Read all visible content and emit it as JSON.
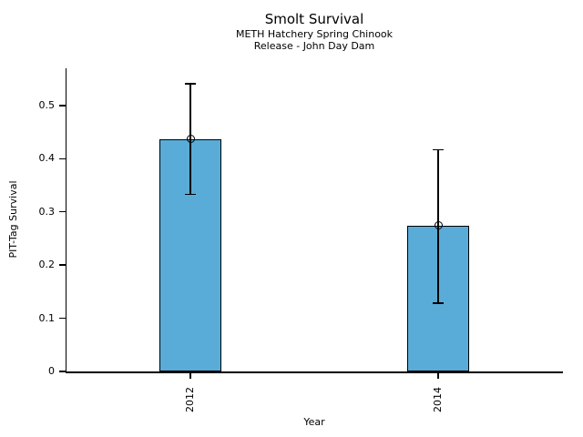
{
  "chart_data": {
    "type": "bar",
    "title": "Smolt Survival",
    "subtitle_lines": [
      "METH Hatchery Spring Chinook",
      "Release - John Day Dam"
    ],
    "xlabel": "Year",
    "ylabel": "PIT-Tag Survival",
    "categories": [
      "2012",
      "2014"
    ],
    "values": [
      0.437,
      0.274
    ],
    "error_low": [
      0.333,
      0.128
    ],
    "error_high": [
      0.541,
      0.417
    ],
    "yticks": [
      0,
      0.1,
      0.2,
      0.3,
      0.4,
      0.5
    ],
    "ytick_labels": [
      "0",
      "0.1",
      "0.2",
      "0.3",
      "0.4",
      "0.5"
    ],
    "ylim": [
      0,
      0.57
    ],
    "grid": false,
    "legend": null,
    "marker": "open-circle",
    "bar_color": "#5AACD8",
    "bar_edge_color": "#000000",
    "error_bar_color": "#000000",
    "axis_color": "#000000",
    "text_color": "#000000",
    "background_color": "#FFFFFF"
  }
}
